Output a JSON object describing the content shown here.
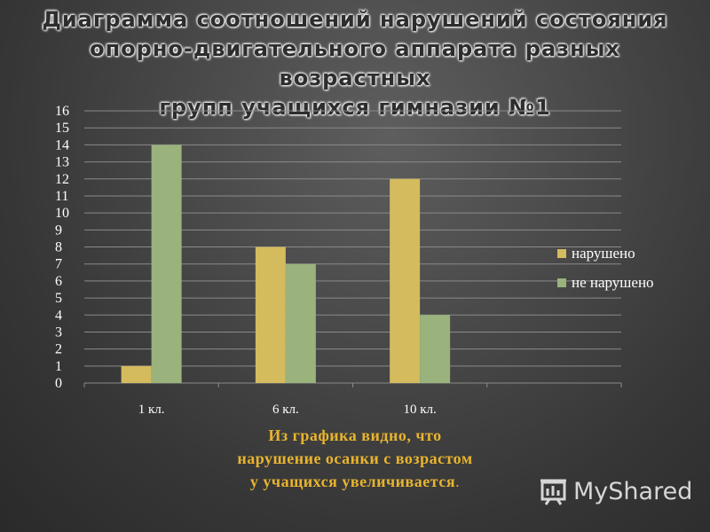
{
  "slide": {
    "title_lines": [
      "Диаграмма соотношений нарушений состояния",
      "опорно-двигательного аппарата разных возрастных",
      "групп учащихся гимназии №1"
    ],
    "conclusion_lines": [
      "Из графика видно, что",
      "нарушение осанки с возрастом",
      "у учащихся увеличивается"
    ],
    "conclusion_end": ".",
    "logo_text": "MyShared"
  },
  "chart_data": {
    "type": "bar",
    "categories": [
      "1 кл.",
      "6 кл.",
      "10 кл.",
      ""
    ],
    "series": [
      {
        "name": "нарушено",
        "values": [
          1,
          8,
          12,
          null
        ],
        "color": "#d4bb5e"
      },
      {
        "name": "не нарушено",
        "values": [
          14,
          7,
          4,
          null
        ],
        "color": "#9ab27c"
      }
    ],
    "ylim": [
      0,
      16
    ],
    "yticks": [
      0,
      1,
      2,
      3,
      4,
      5,
      6,
      7,
      8,
      9,
      10,
      11,
      12,
      13,
      14,
      15,
      16
    ],
    "grid": true,
    "legend": "right",
    "xlabel": "",
    "ylabel": ""
  }
}
